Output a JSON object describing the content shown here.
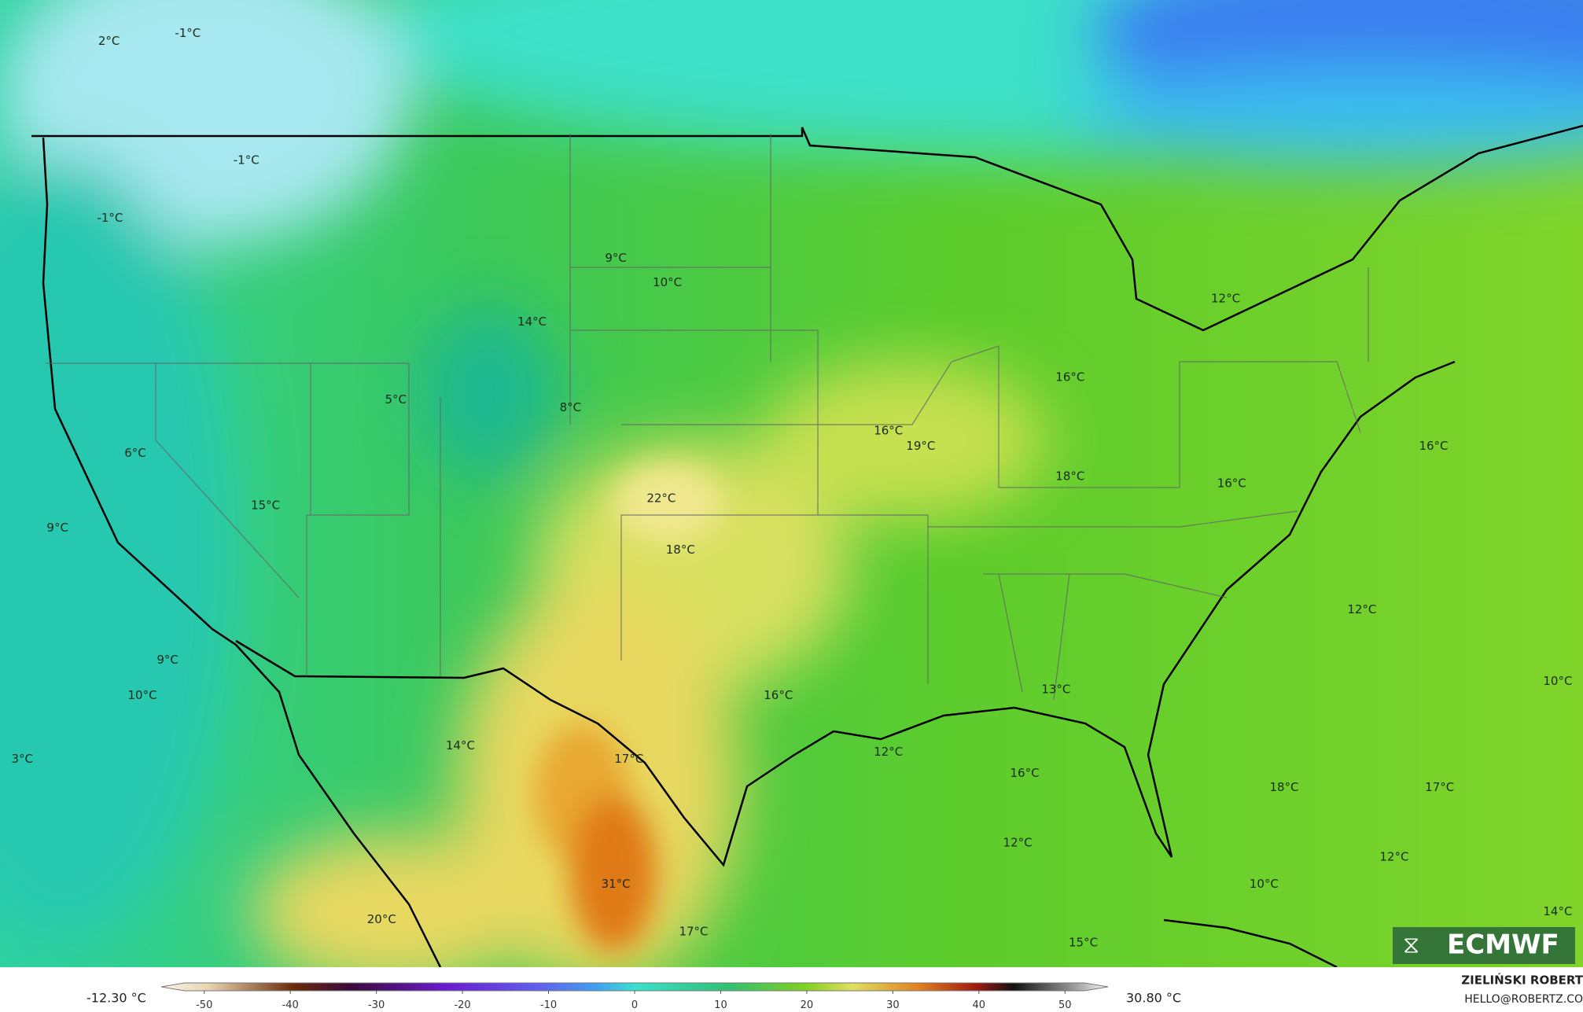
{
  "map_labels": [
    "2°C",
    "-1°C",
    "-1°C",
    "-1°C",
    "9°C",
    "10°C",
    "14°C",
    "12°C",
    "16°C",
    "5°C",
    "8°C",
    "16°C",
    "19°C",
    "16°C",
    "6°C",
    "22°C",
    "18°C",
    "16°C",
    "15°C",
    "9°C",
    "18°C",
    "12°C",
    "9°C",
    "10°C",
    "16°C",
    "13°C",
    "10°C",
    "3°C",
    "14°C",
    "17°C",
    "12°C",
    "16°C",
    "18°C",
    "17°C",
    "12°C",
    "12°C",
    "31°C",
    "10°C",
    "20°C",
    "17°C",
    "15°C",
    "14°C"
  ],
  "logo": "ECMWF",
  "colorbar": {
    "min_label": "-12.30 °C",
    "max_label": "30.80 °C",
    "lim": [
      -55,
      55
    ],
    "ticks": [
      -50,
      -40,
      -30,
      -20,
      -10,
      0,
      10,
      20,
      30,
      40,
      50
    ]
  },
  "credits": {
    "author": "ZIELIŃSKI ROBERT",
    "contact": "HELLO@ROBERTZ.CO"
  }
}
